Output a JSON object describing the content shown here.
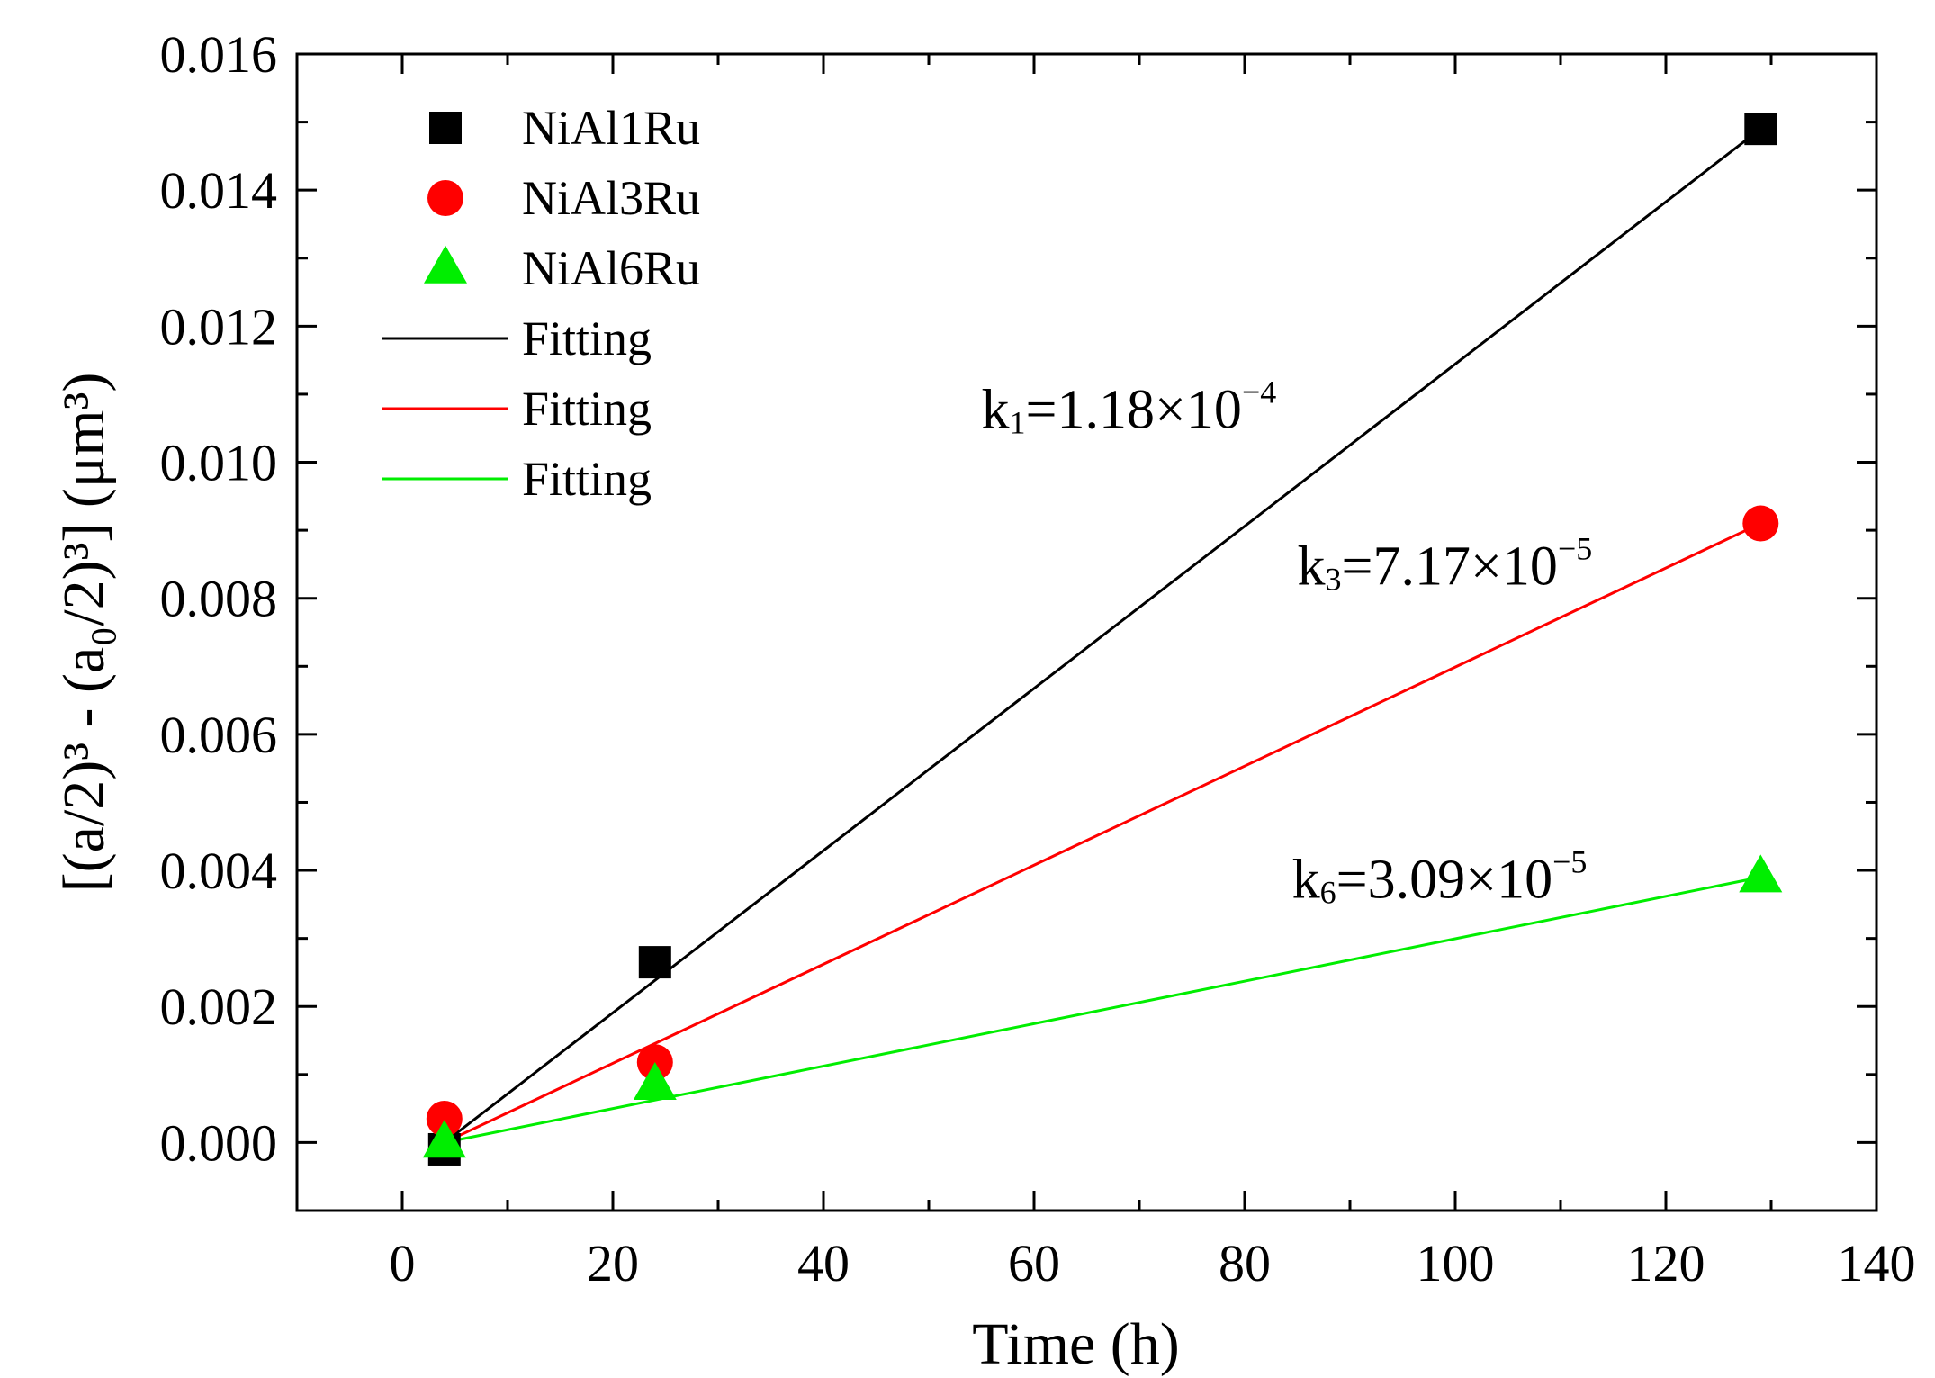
{
  "chart_data": {
    "type": "scatter",
    "title": "",
    "xlabel": "Time (h)",
    "ylabel": "[(a/2)³ - (a₀/2)³] (μm³)",
    "xlim": [
      -10,
      140
    ],
    "ylim": [
      -0.001,
      0.016
    ],
    "xticks": [
      0,
      20,
      40,
      60,
      80,
      100,
      120,
      140
    ],
    "yticks": [
      0.0,
      0.002,
      0.004,
      0.006,
      0.008,
      0.01,
      0.012,
      0.014,
      0.016
    ],
    "xtick_labels": [
      "0",
      "20",
      "40",
      "60",
      "80",
      "100",
      "120",
      "140"
    ],
    "ytick_labels": [
      "0.000",
      "0.002",
      "0.004",
      "0.006",
      "0.008",
      "0.010",
      "0.012",
      "0.014",
      "0.016"
    ],
    "grid": false,
    "legend_position": "top-left",
    "series": [
      {
        "name": "NiAl1Ru",
        "marker": "square",
        "color": "#000000",
        "x": [
          4,
          24,
          129
        ],
        "y": [
          -0.0001,
          0.00265,
          0.0149
        ]
      },
      {
        "name": "NiAl3Ru",
        "marker": "circle",
        "color": "#ff0000",
        "x": [
          4,
          24,
          129
        ],
        "y": [
          0.00035,
          0.00118,
          0.0091
        ]
      },
      {
        "name": "NiAl6Ru",
        "marker": "triangle",
        "color": "#00ee00",
        "x": [
          4,
          24,
          129
        ],
        "y": [
          0.0,
          0.00085,
          0.0039
        ]
      }
    ],
    "fits": [
      {
        "name": "Fitting",
        "color": "#000000",
        "x": [
          4,
          129
        ],
        "y": [
          0.0,
          0.0149
        ]
      },
      {
        "name": "Fitting",
        "color": "#ff0000",
        "x": [
          4,
          129
        ],
        "y": [
          0.0,
          0.0091
        ]
      },
      {
        "name": "Fitting",
        "color": "#00ee00",
        "x": [
          4,
          129
        ],
        "y": [
          0.0,
          0.0039
        ]
      }
    ],
    "annotations": [
      {
        "k": "k",
        "sub": "1",
        "value": "=1.18×10",
        "exp": "−4",
        "x": 55,
        "y": 0.0105
      },
      {
        "k": "k",
        "sub": "3",
        "value": "=7.17×10",
        "exp": "−5",
        "x": 85,
        "y": 0.0082
      },
      {
        "k": "k",
        "sub": "6",
        "value": "=3.09×10",
        "exp": "−5",
        "x": 84.5,
        "y": 0.0036
      }
    ]
  }
}
